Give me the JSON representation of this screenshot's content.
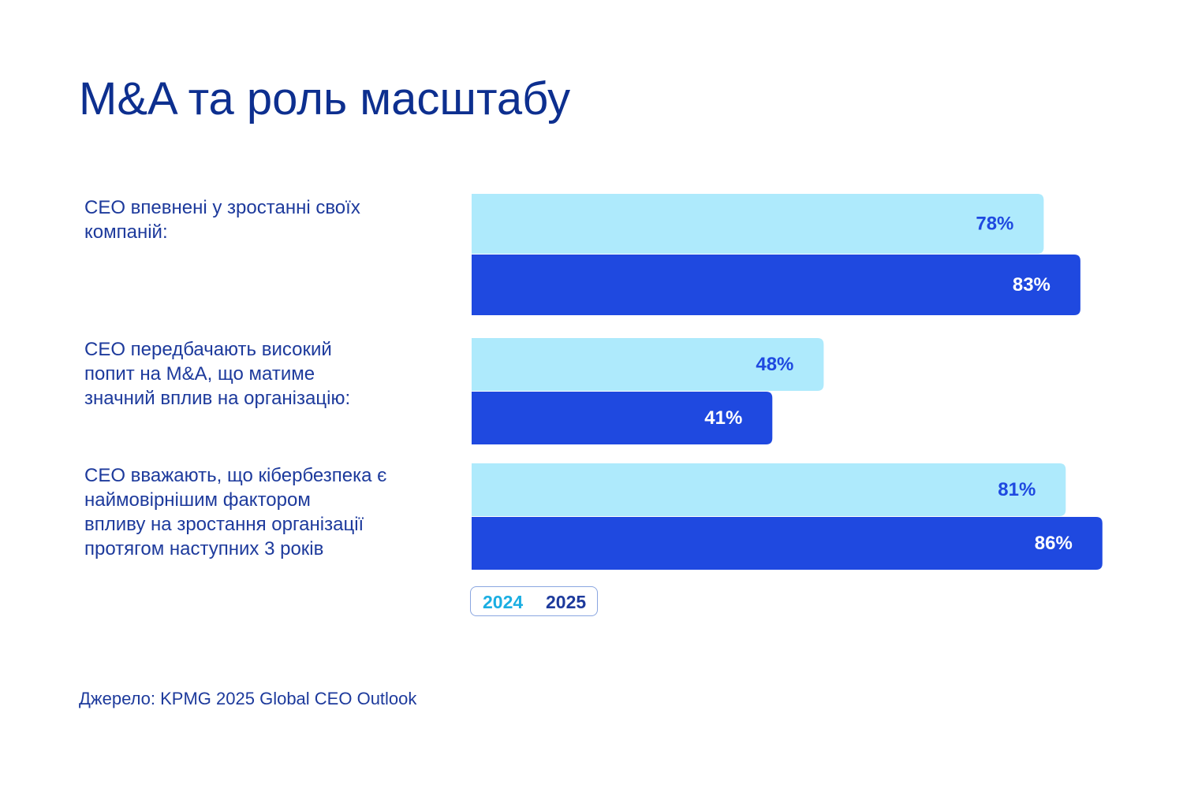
{
  "chart_data": {
    "type": "bar",
    "orientation": "horizontal",
    "title": "M&A та роль масштабу",
    "categories": [
      "CEO впевнені у зростанні своїх\nкомпаній:",
      "CEO передбачають високий\nпопит на M&A, що матиме\nзначний вплив на організацію:",
      "CEO вважають, що кібербезпека є\nнаймовірнішим фактором\nвпливу на зростання організації\nпротягом наступних 3 років"
    ],
    "series": [
      {
        "name": "2024",
        "color": "#aeeafc",
        "values": [
          78,
          48,
          81
        ],
        "value_labels": [
          "78%",
          "48%",
          "81%"
        ]
      },
      {
        "name": "2025",
        "color": "#1f49e0",
        "values": [
          83,
          41,
          86
        ],
        "value_labels": [
          "83%",
          "41%",
          "86%"
        ]
      }
    ],
    "source": "Джерело: KPMG 2025 Global CEO Outlook"
  }
}
